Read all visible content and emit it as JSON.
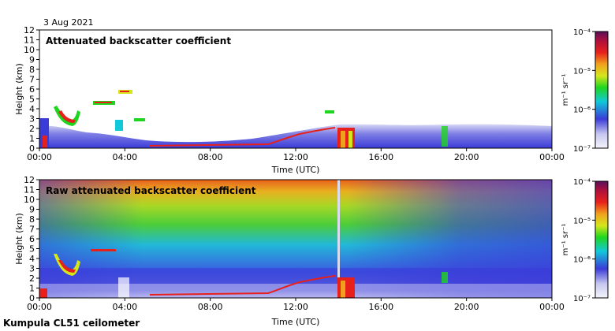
{
  "figure": {
    "date": "3 Aug 2021",
    "footer": "Kumpula CL51 ceilometer"
  },
  "chart_data": [
    {
      "type": "heatmap",
      "title": "Attenuated backscatter coefficient",
      "xlabel": "Time (UTC)",
      "ylabel": "Height (km)",
      "x_ticks": [
        "00:00",
        "04:00",
        "08:00",
        "12:00",
        "16:00",
        "20:00",
        "00:00"
      ],
      "y_ticks": [
        0,
        1,
        2,
        3,
        4,
        5,
        6,
        7,
        8,
        9,
        10,
        11,
        12
      ],
      "xlim_hours": [
        0,
        24
      ],
      "ylim_km": [
        0,
        12
      ],
      "colorbar": {
        "label": "m⁻¹ sr⁻¹",
        "ticks": [
          "10⁻⁴",
          "10⁻⁵",
          "10⁻⁶",
          "10⁻⁷"
        ],
        "range_log10": [
          -7,
          -4
        ]
      }
    },
    {
      "type": "heatmap",
      "title": "Raw attenuated backscatter coefficient",
      "xlabel": "Time (UTC)",
      "ylabel": "Height (km)",
      "x_ticks": [
        "00:00",
        "04:00",
        "08:00",
        "12:00",
        "16:00",
        "20:00",
        "00:00"
      ],
      "y_ticks": [
        0,
        1,
        2,
        3,
        4,
        5,
        6,
        7,
        8,
        9,
        10,
        11,
        12
      ],
      "xlim_hours": [
        0,
        24
      ],
      "ylim_km": [
        0,
        12
      ],
      "colorbar": {
        "label": "m⁻¹ sr⁻¹",
        "ticks": [
          "10⁻⁴",
          "10⁻⁵",
          "10⁻⁶",
          "10⁻⁷"
        ],
        "range_log10": [
          -7,
          -4
        ]
      }
    }
  ]
}
